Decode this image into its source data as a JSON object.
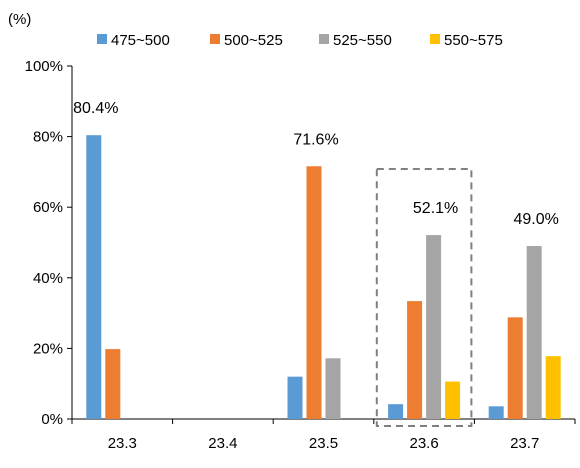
{
  "chart_data": {
    "type": "bar",
    "title": "",
    "xlabel": "",
    "ylabel": "",
    "unit_label": "(%)",
    "ylim": [
      0,
      100
    ],
    "yticks": [
      0,
      20,
      40,
      60,
      80,
      100
    ],
    "ytick_labels": [
      "0%",
      "20%",
      "40%",
      "60%",
      "80%",
      "100%"
    ],
    "grid": false,
    "legend_position": "top",
    "categories": [
      "23.3",
      "23.4",
      "23.5",
      "23.6",
      "23.7"
    ],
    "series": [
      {
        "name": "475~500",
        "color": "#5B9BD5",
        "values": [
          80.4,
          0,
          12.0,
          4.2,
          3.6
        ]
      },
      {
        "name": "500~525",
        "color": "#ED7D31",
        "values": [
          19.8,
          0,
          71.6,
          33.4,
          28.8
        ]
      },
      {
        "name": "525~550",
        "color": "#A5A5A5",
        "values": [
          0,
          0,
          17.2,
          52.1,
          49.0
        ]
      },
      {
        "name": "550~575",
        "color": "#FFC000",
        "values": [
          0,
          0,
          0,
          10.6,
          17.8
        ]
      }
    ],
    "annotations": [
      {
        "category": "23.3",
        "text": "80.4%"
      },
      {
        "category": "23.5",
        "text": "71.6%"
      },
      {
        "category": "23.6",
        "text": "52.1%"
      },
      {
        "category": "23.7",
        "text": "49.0%"
      }
    ],
    "highlight_category": "23.6"
  }
}
